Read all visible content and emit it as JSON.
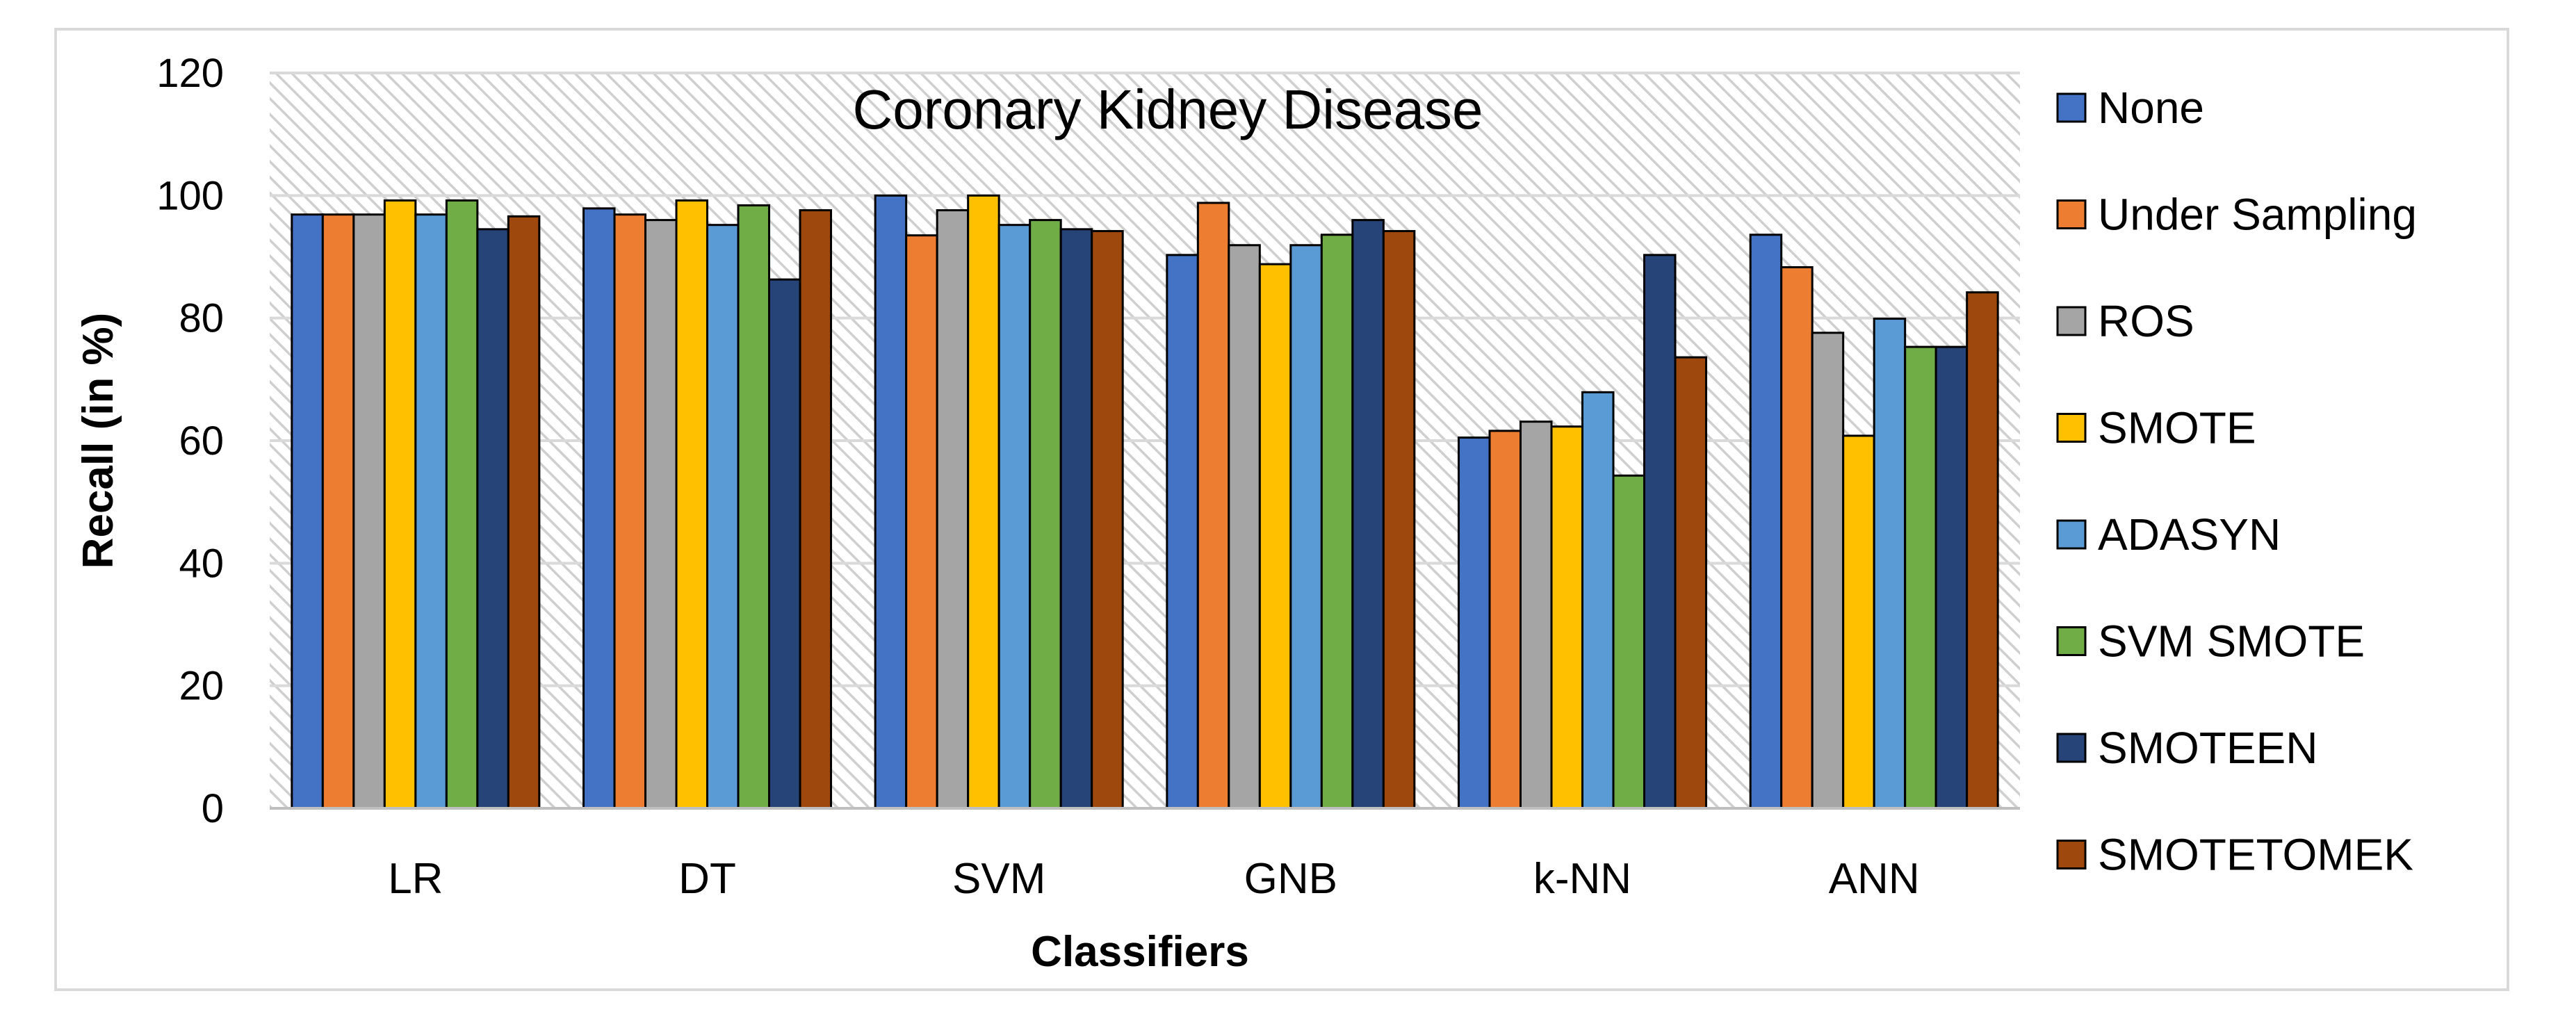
{
  "chart_data": {
    "type": "bar",
    "title": "Coronary Kidney Disease",
    "xlabel": "Classifiers",
    "ylabel": "Recall (in %)",
    "ylim": [
      0,
      120
    ],
    "yticks": [
      0,
      20,
      40,
      60,
      80,
      100,
      120
    ],
    "grid": true,
    "legend_position": "right",
    "categories": [
      "LR",
      "DT",
      "SVM",
      "GNB",
      "k-NN",
      "ANN"
    ],
    "series": [
      {
        "name": "None",
        "color": "#4472C4",
        "values": [
          96.9,
          97.9,
          100,
          90.3,
          60.5,
          93.6
        ]
      },
      {
        "name": "Under Sampling",
        "color": "#ED7D31",
        "values": [
          96.9,
          96.9,
          93.5,
          98.8,
          61.6,
          88.3
        ]
      },
      {
        "name": "ROS",
        "color": "#A5A5A5",
        "values": [
          96.9,
          96.0,
          97.6,
          91.9,
          63.1,
          77.6
        ]
      },
      {
        "name": "SMOTE",
        "color": "#FFC000",
        "values": [
          99.2,
          99.2,
          100,
          88.8,
          62.3,
          60.8
        ]
      },
      {
        "name": "ADASYN",
        "color": "#5B9BD5",
        "values": [
          96.9,
          95.2,
          95.2,
          91.9,
          67.9,
          79.9
        ]
      },
      {
        "name": "SVM SMOTE",
        "color": "#70AD47",
        "values": [
          99.2,
          98.4,
          96.0,
          93.6,
          54.3,
          75.3
        ]
      },
      {
        "name": "SMOTEEN",
        "color": "#264478",
        "values": [
          94.5,
          86.3,
          94.5,
          96.0,
          90.3,
          75.3
        ]
      },
      {
        "name": "SMOTETOMEK",
        "color": "#9E480E",
        "values": [
          96.6,
          97.6,
          94.2,
          94.2,
          73.6,
          84.2
        ]
      }
    ]
  }
}
